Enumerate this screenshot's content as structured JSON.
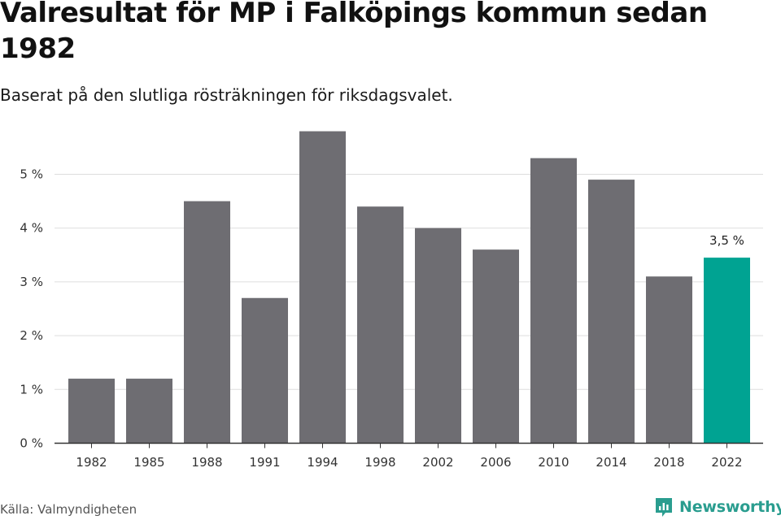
{
  "title": "Valresultat för MP i Falköpings kommun sedan 1982",
  "subtitle": "Baserat på den slutliga rösträkningen för riksdagsvalet.",
  "source": "Källa: Valmyndigheten",
  "brand": {
    "name": "Newsworthy",
    "color": "#2a9d8f",
    "icon": "newsworthy-logo-icon"
  },
  "colors": {
    "bar": "#6e6d72",
    "highlight": "#00a392",
    "grid": "#dddddd",
    "axis": "#333333"
  },
  "chart_data": {
    "type": "bar",
    "categories": [
      "1982",
      "1985",
      "1988",
      "1991",
      "1994",
      "1998",
      "2002",
      "2006",
      "2010",
      "2014",
      "2018",
      "2022"
    ],
    "values": [
      1.2,
      1.2,
      4.5,
      2.7,
      5.8,
      4.4,
      4.0,
      3.6,
      5.3,
      4.9,
      3.1,
      3.45
    ],
    "unit": "%",
    "ylim": [
      0,
      6
    ],
    "yticks": [
      0,
      1,
      2,
      3,
      4,
      5
    ],
    "ytick_labels": [
      "0 %",
      "1 %",
      "2 %",
      "3 %",
      "4 %",
      "5 %"
    ],
    "grid": true,
    "highlight_index": 11,
    "annotations": [
      {
        "category": "2022",
        "text": "3,5 %"
      }
    ]
  }
}
